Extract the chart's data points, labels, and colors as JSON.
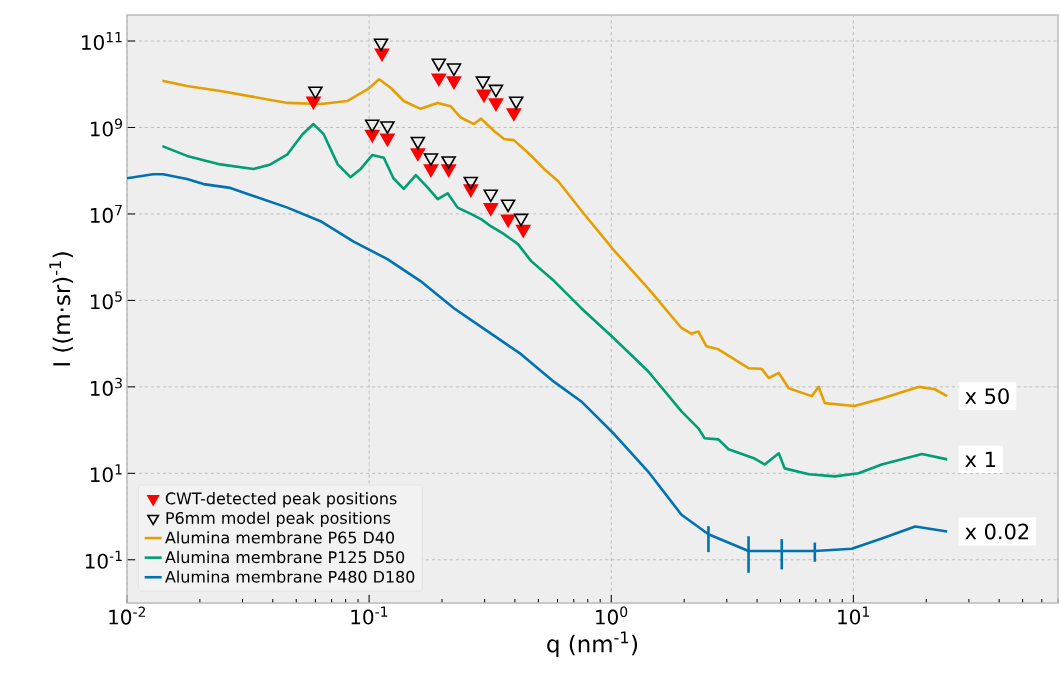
{
  "chart_data": {
    "type": "line",
    "xlabel": "q (nm$^{-1}$)",
    "ylabel": "I ((m·sr)$^{-1}$)",
    "log": "xy",
    "grid": true,
    "legend": "bottom left",
    "xlim": [
      0.01,
      70
    ],
    "ylim": [
      0.01,
      400000000000.0
    ],
    "xticks": [
      {
        "value": 0.01,
        "label": "10$^{-2}$"
      },
      {
        "value": 0.1,
        "label": "10$^{-1}$"
      },
      {
        "value": 1,
        "label": "10$^{0}$"
      },
      {
        "value": 10,
        "label": "10$^{1}$"
      }
    ],
    "yticks": [
      {
        "value": 0.1,
        "label": "10$^{-1}$"
      },
      {
        "value": 10,
        "label": "10$^{1}$"
      },
      {
        "value": 1000,
        "label": "10$^{3}$"
      },
      {
        "value": 100000,
        "label": "10$^{5}$"
      },
      {
        "value": 10000000,
        "label": "10$^{7}$"
      },
      {
        "value": 1000000000,
        "label": "10$^{9}$"
      },
      {
        "value": 100000000000,
        "label": "10$^{11}$"
      }
    ],
    "annotations": [
      "x 50",
      "x 1",
      "x 0.02"
    ],
    "series": [
      {
        "name": "CWT-detected peak positions",
        "type": "scatter",
        "marker": "triangle",
        "color": "#ff0000",
        "x": [
          0.0589,
          0.113,
          0.194,
          0.224,
          0.298,
          0.334,
          0.396,
          0.103,
          0.119,
          0.159,
          0.18,
          0.213,
          0.263,
          0.318,
          0.375,
          0.433
        ],
        "values": [
          4100000000.0,
          53000000000.0,
          14000000000.0,
          12000000000.0,
          5900000000.0,
          3700000000.0,
          2200000000.0,
          700000000.0,
          570000000.0,
          260000000.0,
          110000000.0,
          110000000.0,
          38000000.0,
          14000000.0,
          7600000.0,
          4400000.0
        ]
      },
      {
        "name": "P6mm model peak positions",
        "type": "scatter",
        "marker": "triangle",
        "color": "#000000",
        "x": [
          0.06,
          0.112,
          0.194,
          0.224,
          0.295,
          0.334,
          0.405,
          0.103,
          0.119,
          0.159,
          0.18,
          0.213,
          0.263,
          0.318,
          0.375,
          0.424
        ],
        "values": [
          7000000000.0,
          90000000000.0,
          31000000000.0,
          24000000000.0,
          12000000000.0,
          7700000000.0,
          4100000000.0,
          1200000000.0,
          1100000000.0,
          480000000.0,
          200000000.0,
          170000000.0,
          57000000.0,
          29000000.0,
          17000000.0,
          8000000.0
        ]
      },
      {
        "name": "Alumina membrane P65 D40",
        "color": "#e69f00",
        "x": [
          0.014,
          0.0177,
          0.0243,
          0.0333,
          0.046,
          0.063,
          0.0815,
          0.0987,
          0.11,
          0.123,
          0.139,
          0.163,
          0.192,
          0.217,
          0.239,
          0.271,
          0.29,
          0.328,
          0.361,
          0.396,
          0.453,
          0.528,
          0.604,
          0.752,
          1.03,
          1.42,
          1.95,
          2.14,
          2.29,
          2.47,
          2.77,
          3.69,
          4.18,
          4.47,
          4.92,
          5.41,
          6.73,
          7.19,
          7.62,
          10.1,
          13.1,
          18.7,
          21.7,
          24.4
        ],
        "values": [
          12000000000.0,
          9100000000.0,
          7000000000.0,
          5100000000.0,
          3700000000.0,
          3500000000.0,
          4100000000.0,
          7700000000.0,
          13000000000.0,
          8200000000.0,
          4100000000.0,
          2700000000.0,
          3700000000.0,
          3100000000.0,
          1700000000.0,
          1200000000.0,
          1600000000.0,
          830000000.0,
          540000000.0,
          510000000.0,
          260000000.0,
          110000000.0,
          57000000.0,
          12000000.0,
          1400000.0,
          190000.0,
          23000.0,
          17000.0,
          19000.0,
          8700.0,
          7400.0,
          2700.0,
          2600.0,
          1600.0,
          2100.0,
          930,
          610,
          1000.0,
          420,
          360,
          540,
          1000.0,
          880,
          610
        ]
      },
      {
        "name": "Alumina membrane P125 D50",
        "color": "#009e73",
        "x": [
          0.014,
          0.0177,
          0.0243,
          0.0333,
          0.0391,
          0.046,
          0.0531,
          0.0589,
          0.0649,
          0.0742,
          0.0837,
          0.0923,
          0.103,
          0.115,
          0.126,
          0.139,
          0.156,
          0.175,
          0.192,
          0.211,
          0.232,
          0.263,
          0.29,
          0.318,
          0.361,
          0.412,
          0.467,
          0.581,
          0.752,
          1.03,
          1.42,
          1.95,
          2.29,
          2.43,
          2.77,
          3.05,
          3.91,
          4.3,
          4.92,
          5.2,
          6.55,
          8.38,
          10.5,
          13.1,
          19.2,
          24.4
        ],
        "values": [
          370000000.0,
          220000000.0,
          140000000.0,
          110000000.0,
          140000000.0,
          240000000.0,
          700000000.0,
          1200000000.0,
          700000000.0,
          140000000.0,
          71000000.0,
          110000000.0,
          230000000.0,
          200000000.0,
          67000000.0,
          38000000.0,
          79000000.0,
          40000000.0,
          22000000.0,
          30000000.0,
          14000000.0,
          10000000.0,
          7600000.0,
          5200000.0,
          3400000.0,
          2000000.0,
          810000.0,
          280000.0,
          66000.0,
          13000.0,
          2300.0,
          270,
          110,
          65,
          61,
          36,
          22,
          16,
          29,
          13,
          9.5,
          8.5,
          10,
          16,
          28,
          21
        ]
      },
      {
        "name": "Alumina membrane P480 D180",
        "color": "#0072b2",
        "x": [
          0.01,
          0.0128,
          0.0141,
          0.0177,
          0.0207,
          0.0267,
          0.0333,
          0.046,
          0.063,
          0.0863,
          0.119,
          0.163,
          0.224,
          0.31,
          0.424,
          0.581,
          0.752,
          1.03,
          1.42,
          1.95,
          2.52,
          3.69,
          5.06,
          6.93,
          9.86,
          13.1,
          18.0,
          24.4
        ],
        "values": [
          67000000.0,
          83000000.0,
          83000000.0,
          64000000.0,
          49000000.0,
          40000000.0,
          26000000.0,
          14000000.0,
          6800000.0,
          2300000.0,
          900000.0,
          280000.0,
          66000.0,
          19000.0,
          5700.0,
          1300.0,
          460,
          80,
          11,
          1.1,
          0.39,
          0.16,
          0.16,
          0.16,
          0.18,
          0.31,
          0.59,
          0.45
        ],
        "errors": [
          null,
          null,
          null,
          null,
          null,
          null,
          null,
          null,
          null,
          null,
          null,
          null,
          null,
          null,
          null,
          null,
          null,
          null,
          null,
          null,
          [
            0.15,
            0.6
          ],
          [
            0.05,
            0.35
          ],
          [
            0.06,
            0.3
          ],
          [
            0.09,
            0.25
          ],
          null,
          null,
          null,
          null
        ]
      }
    ]
  }
}
